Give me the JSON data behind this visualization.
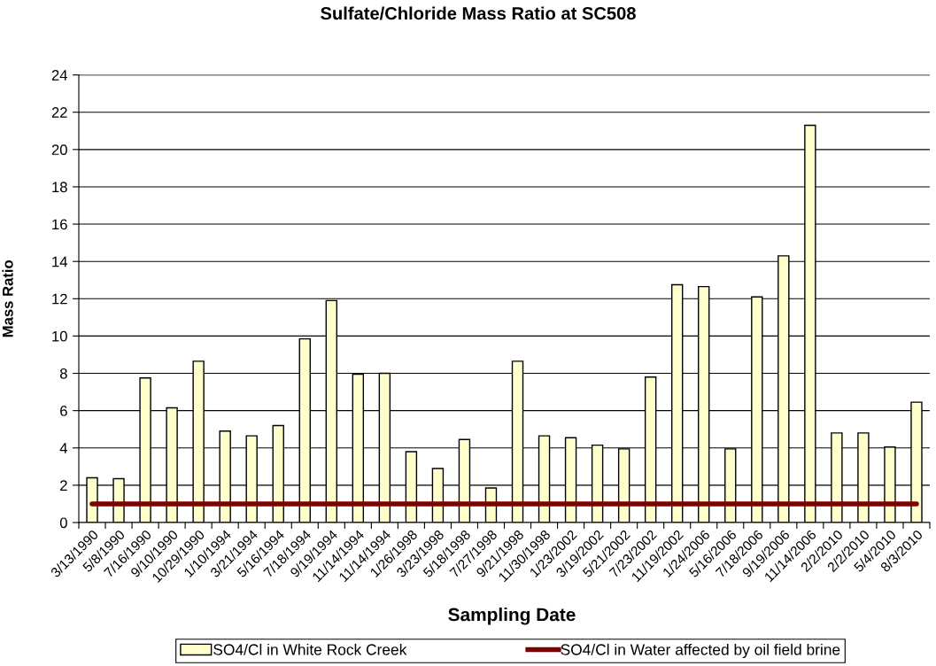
{
  "chart_data": {
    "type": "bar",
    "title": "Sulfate/Chloride Mass Ratio at SC508",
    "xlabel": "Sampling Date",
    "ylabel": "Mass Ratio",
    "categories": [
      "3/13/1990",
      "5/8/1990",
      "7/16/1990",
      "9/10/1990",
      "10/29/1990",
      "1/10/1994",
      "3/21/1994",
      "5/16/1994",
      "7/18/1994",
      "9/19/1994",
      "11/14/1994",
      "11/14/1994",
      "1/26/1998",
      "3/23/1998",
      "5/18/1998",
      "7/27/1998",
      "9/21/1998",
      "11/30/1998",
      "1/23/2002",
      "3/19/2002",
      "5/21/2002",
      "7/23/2002",
      "11/19/2002",
      "1/24/2006",
      "5/16/2006",
      "7/18/2006",
      "9/19/2006",
      "11/14/2006",
      "2/2/2010",
      "2/2/2010",
      "5/4/2010",
      "8/3/2010"
    ],
    "series": [
      {
        "name": "SO4/Cl in White Rock Creek",
        "color": "#ffffcc",
        "values": [
          2.4,
          2.35,
          7.75,
          6.15,
          8.65,
          4.9,
          4.65,
          5.2,
          9.85,
          11.9,
          7.95,
          8.0,
          3.8,
          2.9,
          4.45,
          1.85,
          8.65,
          4.65,
          4.55,
          4.15,
          3.95,
          7.8,
          12.75,
          12.65,
          3.95,
          12.1,
          14.3,
          21.3,
          4.8,
          4.8,
          4.05,
          6.45
        ]
      },
      {
        "name": "SO4/Cl in Water affected by oil field brine",
        "type": "line",
        "color": "#800000",
        "values": [
          1,
          1,
          1,
          1,
          1,
          1,
          1,
          1,
          1,
          1,
          1,
          1,
          1,
          1,
          1,
          1,
          1,
          1,
          1,
          1,
          1,
          1,
          1,
          1,
          1,
          1,
          1,
          1,
          1,
          1,
          1,
          1
        ]
      }
    ],
    "ylim": [
      0,
      24
    ],
    "yticks": [
      0,
      2,
      4,
      6,
      8,
      10,
      12,
      14,
      16,
      18,
      20,
      22,
      24
    ],
    "grid": "y",
    "legend": "bottom"
  }
}
